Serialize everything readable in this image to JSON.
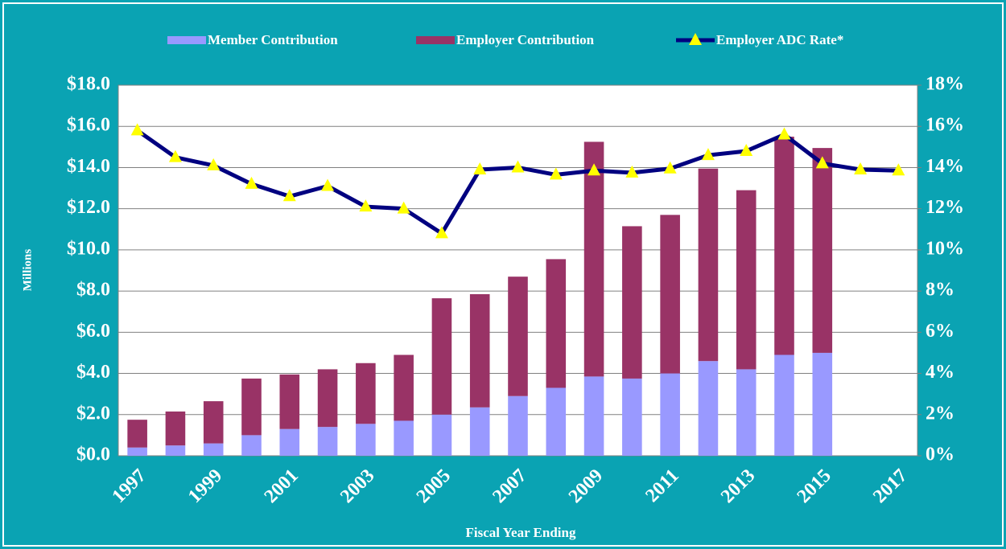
{
  "chart_data": {
    "type": "bar",
    "y_axis_label": "Millions",
    "x_axis_label": "Fiscal Year Ending",
    "categories": [
      "1997",
      null,
      "1999",
      null,
      "2001",
      null,
      "2003",
      null,
      "2005",
      null,
      "2007",
      null,
      "2009",
      null,
      "2011",
      null,
      "2013",
      null,
      "2015",
      null,
      "2017"
    ],
    "series": [
      {
        "name": "Member Contribution",
        "color": "#9999ff",
        "values": [
          0.4,
          0.5,
          0.6,
          1.0,
          1.3,
          1.4,
          1.55,
          1.7,
          2.0,
          2.35,
          2.9,
          3.3,
          3.85,
          3.75,
          4.0,
          4.6,
          4.2,
          4.9,
          5.0,
          null,
          null
        ]
      },
      {
        "name": "Employer Contribution",
        "color": "#993366",
        "values": [
          1.35,
          1.65,
          2.05,
          2.75,
          2.65,
          2.8,
          2.95,
          3.2,
          5.65,
          5.5,
          5.8,
          6.25,
          11.4,
          7.4,
          7.7,
          9.35,
          8.7,
          10.6,
          9.95,
          null,
          null
        ]
      },
      {
        "name": "Employer ADC Rate*",
        "type": "line",
        "axis": "y2",
        "color": "#000080",
        "marker_color": "#ffff00",
        "values": [
          15.8,
          14.5,
          14.1,
          13.2,
          12.6,
          13.1,
          12.1,
          12.0,
          10.8,
          13.9,
          14.0,
          13.65,
          13.85,
          13.75,
          13.95,
          14.6,
          14.8,
          15.6,
          14.2,
          13.9,
          13.85
        ]
      }
    ],
    "stacked": true,
    "ylim": [
      0,
      18
    ],
    "yticks": [
      {
        "value": 0,
        "label": "$0.0"
      },
      {
        "value": 2,
        "label": "$2.0"
      },
      {
        "value": 4,
        "label": "$4.0"
      },
      {
        "value": 6,
        "label": "$6.0"
      },
      {
        "value": 8,
        "label": "$8.0"
      },
      {
        "value": 10,
        "label": "$10.0"
      },
      {
        "value": 12,
        "label": "$12.0"
      },
      {
        "value": 14,
        "label": "$14.0"
      },
      {
        "value": 16,
        "label": "$16.0"
      },
      {
        "value": 18,
        "label": "$18.0"
      }
    ],
    "y2lim": [
      0,
      18
    ],
    "y2ticks": [
      {
        "value": 0,
        "label": "0%"
      },
      {
        "value": 2,
        "label": "2%"
      },
      {
        "value": 4,
        "label": "4%"
      },
      {
        "value": 6,
        "label": "6%"
      },
      {
        "value": 8,
        "label": "8%"
      },
      {
        "value": 10,
        "label": "10%"
      },
      {
        "value": 12,
        "label": "12%"
      },
      {
        "value": 14,
        "label": "14%"
      },
      {
        "value": 16,
        "label": "16%"
      },
      {
        "value": 18,
        "label": "18%"
      }
    ],
    "grid": true,
    "legend": "top"
  }
}
